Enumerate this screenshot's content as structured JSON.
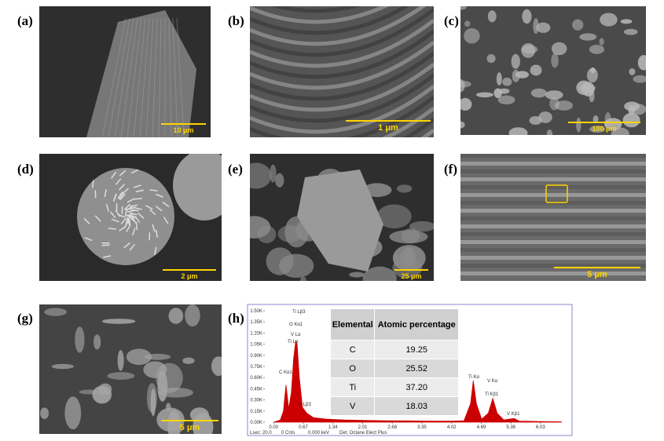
{
  "panels": [
    {
      "label": "(a)",
      "scale_bar": "10 μm"
    },
    {
      "label": "(b)",
      "scale_bar": "1 μm"
    },
    {
      "label": "(c)",
      "scale_bar": "100 μm"
    },
    {
      "label": "(d)",
      "scale_bar": "2 μm"
    },
    {
      "label": "(e)",
      "scale_bar": "25 μm"
    },
    {
      "label": "(f)",
      "scale_bar": "5 μm"
    },
    {
      "label": "(g)",
      "scale_bar": "5 μm"
    }
  ],
  "eds_label": "(h)",
  "chart_data": {
    "type": "area",
    "color": "#cc0000",
    "x": [
      0.0,
      0.15,
      0.22,
      0.28,
      0.34,
      0.4,
      0.45,
      0.5,
      0.53,
      0.58,
      0.65,
      0.75,
      0.9,
      1.2,
      1.6,
      2.0,
      2.5,
      3.0,
      3.5,
      4.0,
      4.3,
      4.45,
      4.51,
      4.58,
      4.7,
      4.85,
      4.95,
      5.05,
      5.2,
      5.43,
      5.55,
      6.0,
      6.5
    ],
    "values": [
      0,
      30,
      150,
      500,
      180,
      400,
      850,
      1100,
      1050,
      600,
      200,
      120,
      60,
      40,
      30,
      25,
      20,
      18,
      15,
      15,
      20,
      250,
      560,
      250,
      40,
      120,
      320,
      120,
      30,
      50,
      15,
      10,
      5
    ],
    "xlim": [
      -0.2,
      6.6
    ],
    "ylim": [
      0,
      1500
    ],
    "xticks": [
      {
        "value": 0,
        "label": "0.00"
      },
      0.67,
      1.34,
      2.01,
      2.68,
      3.35,
      4.02,
      4.69,
      5.36,
      6.03
    ],
    "yticks": [
      {
        "value": 0,
        "label": "0.00K"
      },
      {
        "value": 150,
        "label": "0.15K"
      },
      {
        "value": 300,
        "label": "0.30K"
      },
      {
        "value": 450,
        "label": "0.45K"
      },
      {
        "value": 600,
        "label": "0.60K"
      },
      {
        "value": 750,
        "label": "0.75K"
      },
      {
        "value": 900,
        "label": "0.90K"
      },
      {
        "value": 1050,
        "label": "1.05K"
      },
      {
        "value": 1200,
        "label": "1.20K"
      },
      {
        "value": 1350,
        "label": "1.35K"
      },
      {
        "value": 1500,
        "label": "1.50K"
      }
    ],
    "annotations": [
      "Ti Lβ3",
      "O Kα1",
      "V Lα",
      "Ti Lα",
      "C Kα1",
      "V Lβ3",
      "Ti Kα",
      "V Kα",
      "Ti Kβ1",
      "V Kβ1"
    ],
    "footer": [
      "Lsec: 20.0",
      "0 Cnts",
      "0.000 keV",
      "Det: Octane Elect Plus"
    ]
  },
  "table": {
    "header": [
      "Elemental",
      "Atomic percentage"
    ],
    "rows": [
      [
        "C",
        "19.25"
      ],
      [
        "O",
        "25.52"
      ],
      [
        "Ti",
        "37.20"
      ],
      [
        "V",
        "18.03"
      ]
    ]
  }
}
